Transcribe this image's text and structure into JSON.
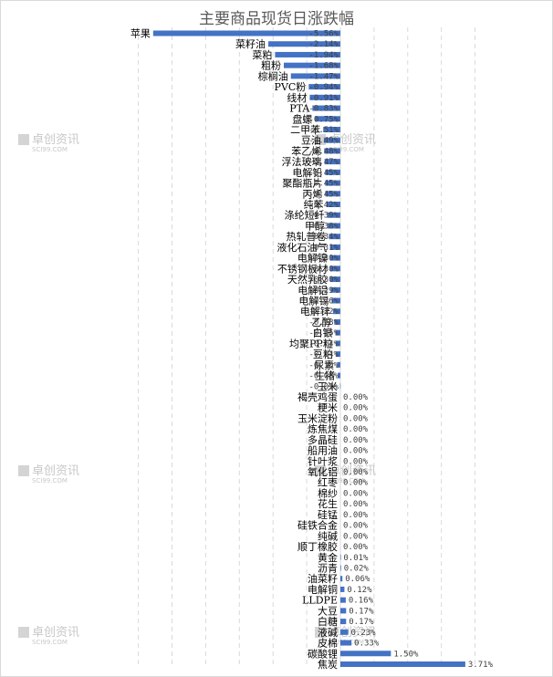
{
  "watermark": {
    "text": "卓创资讯",
    "sub": "SCI99.COM"
  },
  "chart_data": {
    "type": "bar",
    "orientation": "horizontal",
    "title": "主要商品现货日涨跌幅",
    "unit": "%",
    "xlim": [
      -6,
      4
    ],
    "grid": true,
    "bar_color": "#4472c4",
    "items": [
      {
        "name": "苹果",
        "value": -5.56,
        "label": "-5.56%"
      },
      {
        "name": "菜籽油",
        "value": -2.14,
        "label": "-2.14%"
      },
      {
        "name": "菜粕",
        "value": -1.94,
        "label": "-1.94%"
      },
      {
        "name": "粗粉",
        "value": -1.68,
        "label": "-1.68%"
      },
      {
        "name": "棕榈油",
        "value": -1.47,
        "label": "-1.47%"
      },
      {
        "name": "PVC粉",
        "value": -0.94,
        "label": "-0.94%"
      },
      {
        "name": "线材",
        "value": -0.91,
        "label": "-0.91%"
      },
      {
        "name": "PTA",
        "value": -0.83,
        "label": "-0.83%"
      },
      {
        "name": "盘螺",
        "value": -0.75,
        "label": "-0.75%"
      },
      {
        "name": "二甲苯",
        "value": -0.51,
        "label": "-0.51%"
      },
      {
        "name": "豆油",
        "value": -0.49,
        "label": "-0.49%"
      },
      {
        "name": "苯乙烯",
        "value": -0.48,
        "label": "-0.48%"
      },
      {
        "name": "浮法玻璃",
        "value": -0.47,
        "label": "-0.47%"
      },
      {
        "name": "电解铅",
        "value": -0.45,
        "label": "-0.45%"
      },
      {
        "name": "聚酯瓶片",
        "value": -0.45,
        "label": "-0.45%"
      },
      {
        "name": "丙烯",
        "value": -0.45,
        "label": "-0.45%"
      },
      {
        "name": "纯苯",
        "value": -0.42,
        "label": "-0.42%"
      },
      {
        "name": "涤纶短纤",
        "value": -0.39,
        "label": "-0.39%"
      },
      {
        "name": "甲醇",
        "value": -0.38,
        "label": "-0.38%"
      },
      {
        "name": "热轧普卷",
        "value": -0.34,
        "label": "-0.34%"
      },
      {
        "name": "液化石油气",
        "value": -0.31,
        "label": "-0.31%"
      },
      {
        "name": "电解镍",
        "value": -0.3,
        "label": "-0.30%"
      },
      {
        "name": "不锈钢板材",
        "value": -0.3,
        "label": "-0.30%"
      },
      {
        "name": "天然乳胶",
        "value": -0.3,
        "label": "-0.30%"
      },
      {
        "name": "电解铝",
        "value": -0.29,
        "label": "-0.29%"
      },
      {
        "name": "电解锡",
        "value": -0.26,
        "label": "-0.26%"
      },
      {
        "name": "电解锌",
        "value": -0.22,
        "label": "-0.22%"
      },
      {
        "name": "乙醇",
        "value": -0.18,
        "label": "-0.18%"
      },
      {
        "name": "白银",
        "value": -0.15,
        "label": "-0.15%"
      },
      {
        "name": "均聚PP粒",
        "value": -0.14,
        "label": "-0.14%"
      },
      {
        "name": "豆粕",
        "value": -0.14,
        "label": "-0.14%"
      },
      {
        "name": "尿素",
        "value": -0.1,
        "label": "-0.10%"
      },
      {
        "name": "生猪",
        "value": -0.08,
        "label": "-0.08%"
      },
      {
        "name": "玉米",
        "value": -0.01,
        "label": "-0.01%"
      },
      {
        "name": "褐壳鸡蛋",
        "value": 0.0,
        "label": "0.00%"
      },
      {
        "name": "粳米",
        "value": 0.0,
        "label": "0.00%"
      },
      {
        "name": "玉米淀粉",
        "value": 0.0,
        "label": "0.00%"
      },
      {
        "name": "炼焦煤",
        "value": 0.0,
        "label": "0.00%"
      },
      {
        "name": "多晶硅",
        "value": 0.0,
        "label": "0.00%"
      },
      {
        "name": "船用油",
        "value": 0.0,
        "label": "0.00%"
      },
      {
        "name": "针叶浆",
        "value": 0.0,
        "label": "0.00%"
      },
      {
        "name": "氧化铝",
        "value": 0.0,
        "label": "0.00%"
      },
      {
        "name": "红枣",
        "value": 0.0,
        "label": "0.00%"
      },
      {
        "name": "棉纱",
        "value": 0.0,
        "label": "0.00%"
      },
      {
        "name": "花生",
        "value": 0.0,
        "label": "0.00%"
      },
      {
        "name": "硅锰",
        "value": 0.0,
        "label": "0.00%"
      },
      {
        "name": "硅铁合金",
        "value": 0.0,
        "label": "0.00%"
      },
      {
        "name": "纯碱",
        "value": 0.0,
        "label": "0.00%"
      },
      {
        "name": "顺丁橡胶",
        "value": 0.0,
        "label": "0.00%"
      },
      {
        "name": "黄金",
        "value": 0.01,
        "label": "0.01%"
      },
      {
        "name": "沥青",
        "value": 0.02,
        "label": "0.02%"
      },
      {
        "name": "油菜籽",
        "value": 0.06,
        "label": "0.06%"
      },
      {
        "name": "电解铜",
        "value": 0.12,
        "label": "0.12%"
      },
      {
        "name": "LLDPE",
        "value": 0.16,
        "label": "0.16%"
      },
      {
        "name": "大豆",
        "value": 0.17,
        "label": "0.17%"
      },
      {
        "name": "白糖",
        "value": 0.17,
        "label": "0.17%"
      },
      {
        "name": "液碱",
        "value": 0.23,
        "label": "0.23%"
      },
      {
        "name": "皮棉",
        "value": 0.33,
        "label": "0.33%"
      },
      {
        "name": "碳酸锂",
        "value": 1.5,
        "label": "1.50%"
      },
      {
        "name": "焦炭",
        "value": 3.71,
        "label": "3.71%"
      }
    ]
  }
}
